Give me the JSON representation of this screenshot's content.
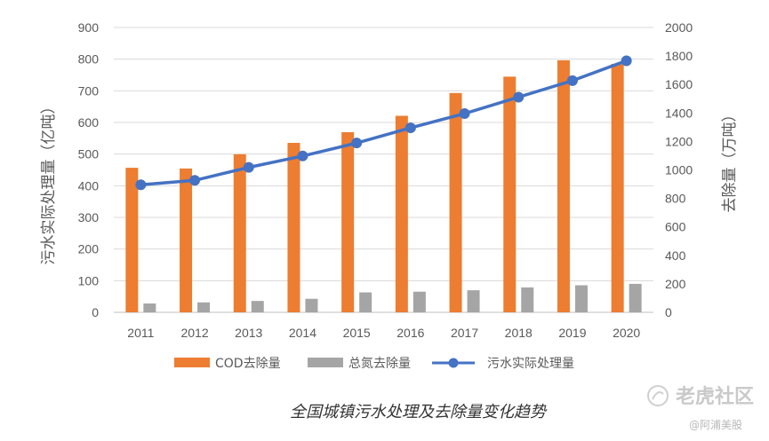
{
  "chart_data": {
    "type": "bar",
    "categories": [
      "2011",
      "2012",
      "2013",
      "2014",
      "2015",
      "2016",
      "2017",
      "2018",
      "2019",
      "2020"
    ],
    "series": [
      {
        "name": "COD去除量",
        "type": "bar",
        "axis": "right",
        "color": "#ed7d31",
        "values": [
          1015,
          1010,
          1110,
          1190,
          1265,
          1380,
          1540,
          1655,
          1770,
          1745
        ]
      },
      {
        "name": "总氮去除量",
        "type": "bar",
        "axis": "right",
        "color": "#a5a5a5",
        "values": [
          62,
          70,
          80,
          95,
          140,
          145,
          155,
          175,
          190,
          200
        ]
      },
      {
        "name": "污水实际处理量",
        "type": "line",
        "axis": "left",
        "color": "#4472c4",
        "values": [
          403,
          417,
          458,
          494,
          535,
          583,
          628,
          680,
          732,
          795
        ]
      }
    ],
    "ylabel": "污水实际处理量（亿吨）",
    "ylabel_right": "去除量（万吨）",
    "ylim": [
      0,
      900
    ],
    "ylim_right": [
      0,
      2000
    ],
    "yticks": [
      "0",
      "100",
      "200",
      "300",
      "400",
      "500",
      "600",
      "700",
      "800",
      "900"
    ],
    "yticks_right": [
      "0",
      "200",
      "400",
      "600",
      "800",
      "1000",
      "1200",
      "1400",
      "1600",
      "1800",
      "2000"
    ],
    "legend_position": "bottom",
    "grid": true,
    "caption": "全国城镇污水处理及去除量变化趋势"
  },
  "watermark": {
    "main": "老虎社区",
    "sub": "@阿浦美股"
  }
}
